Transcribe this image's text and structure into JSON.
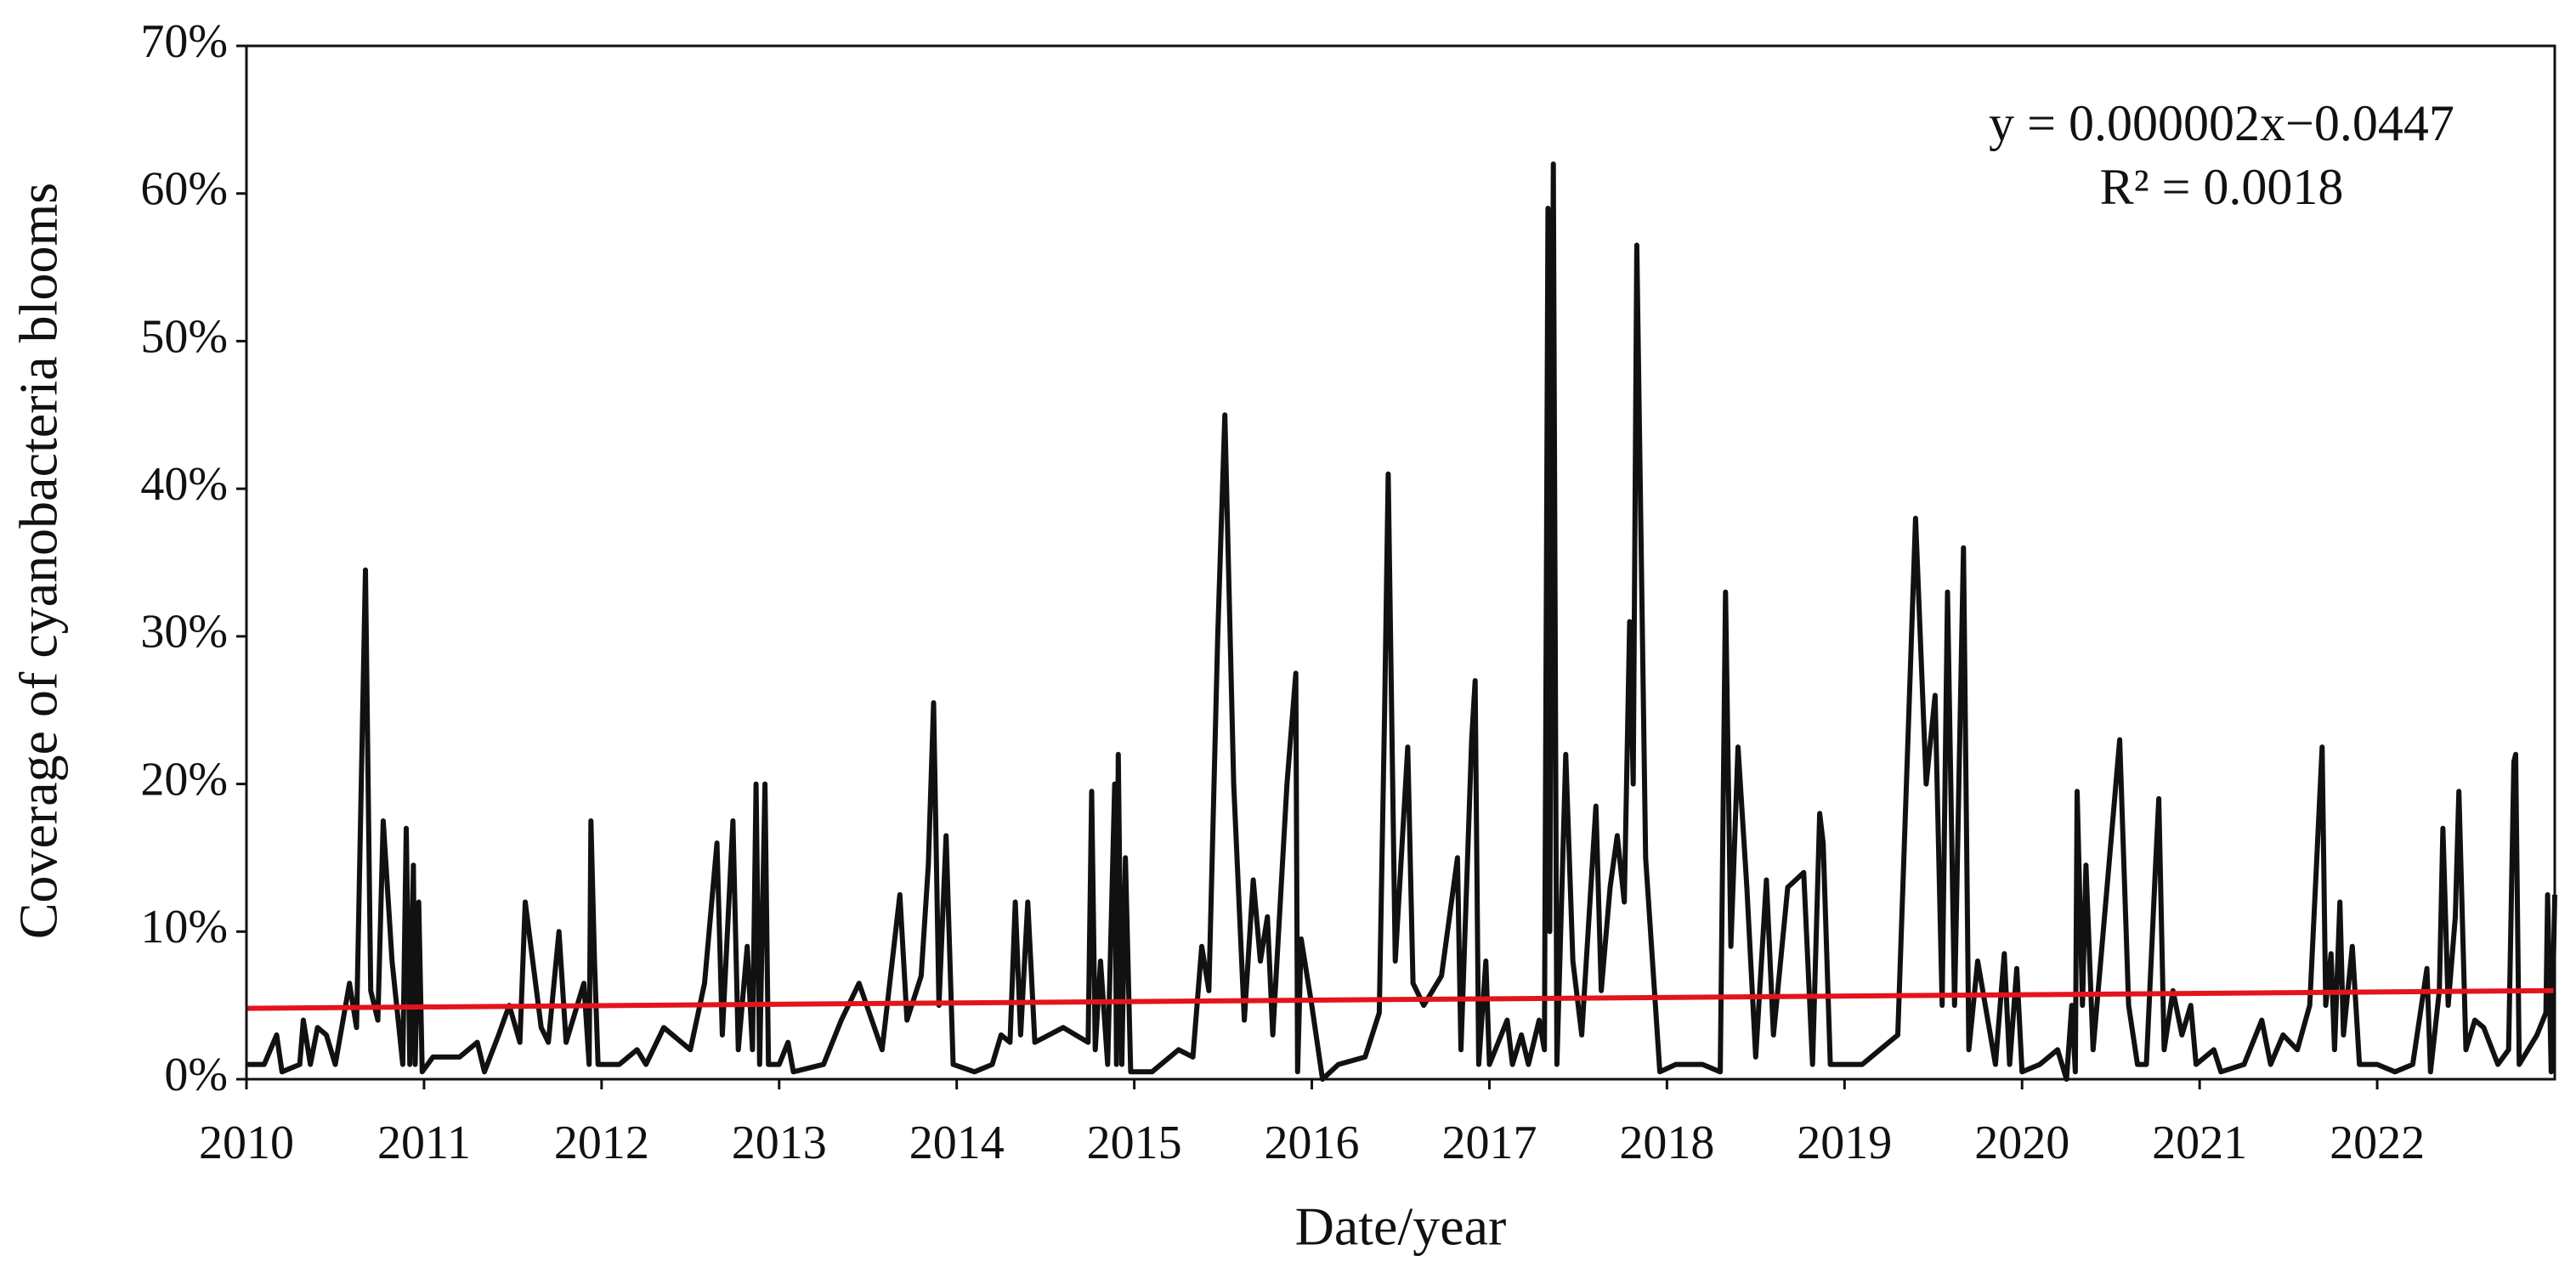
{
  "chart_data": {
    "type": "line",
    "xlabel": "Date/year",
    "ylabel": "Coverage of cyanobacteria blooms",
    "annotations": [
      "y = 0.000002x−0.0447",
      "R² = 0.0018"
    ],
    "xlim": [
      2010,
      2023
    ],
    "xticks": [
      2010,
      2011,
      2012,
      2013,
      2014,
      2015,
      2016,
      2017,
      2018,
      2019,
      2020,
      2021,
      2022
    ],
    "ylim": [
      0,
      70
    ],
    "yticks": [
      {
        "value": 0,
        "label": "0%"
      },
      {
        "value": 10,
        "label": "10%"
      },
      {
        "value": 20,
        "label": "20%"
      },
      {
        "value": 30,
        "label": "30%"
      },
      {
        "value": 40,
        "label": "40%"
      },
      {
        "value": 50,
        "label": "50%"
      },
      {
        "value": 60,
        "label": "60%"
      },
      {
        "value": 70,
        "label": "70%"
      }
    ],
    "trendline": {
      "color": "#e3141c",
      "x": [
        2010,
        2023
      ],
      "values": [
        4.8,
        6.0
      ]
    },
    "series": [
      {
        "color": "#111111",
        "x": [
          2010.0,
          2010.1,
          2010.17,
          2010.2,
          2010.3,
          2010.32,
          2010.36,
          2010.4,
          2010.45,
          2010.5,
          2010.58,
          2010.62,
          2010.67,
          2010.7,
          2010.74,
          2010.77,
          2010.82,
          2010.88,
          2010.9,
          2010.92,
          2010.94,
          2010.95,
          2010.97,
          2010.99,
          2011.05,
          2011.2,
          2011.3,
          2011.34,
          2011.42,
          2011.48,
          2011.54,
          2011.57,
          2011.66,
          2011.7,
          2011.76,
          2011.8,
          2011.9,
          2011.93,
          2011.94,
          2011.96,
          2011.98,
          2012.1,
          2012.2,
          2012.25,
          2012.35,
          2012.5,
          2012.58,
          2012.65,
          2012.68,
          2012.74,
          2012.77,
          2012.82,
          2012.85,
          2012.87,
          2012.89,
          2012.92,
          2012.94,
          2013.0,
          2013.05,
          2013.08,
          2013.25,
          2013.35,
          2013.45,
          2013.58,
          2013.68,
          2013.72,
          2013.8,
          2013.84,
          2013.87,
          2013.9,
          2013.94,
          2013.98,
          2014.1,
          2014.2,
          2014.25,
          2014.3,
          2014.33,
          2014.36,
          2014.4,
          2014.44,
          2014.6,
          2014.74,
          2014.76,
          2014.78,
          2014.81,
          2014.85,
          2014.89,
          2014.9,
          2014.91,
          2014.93,
          2014.95,
          2014.98,
          2015.1,
          2015.25,
          2015.33,
          2015.38,
          2015.42,
          2015.47,
          2015.51,
          2015.56,
          2015.62,
          2015.67,
          2015.71,
          2015.75,
          2015.78,
          2015.86,
          2015.91,
          2015.92,
          2015.94,
          2016.0,
          2016.06,
          2016.15,
          2016.3,
          2016.38,
          2016.41,
          2016.43,
          2016.47,
          2016.54,
          2016.57,
          2016.63,
          2016.73,
          2016.82,
          2016.84,
          2016.9,
          2016.92,
          2016.94,
          2016.98,
          2017.0,
          2017.1,
          2017.13,
          2017.18,
          2017.22,
          2017.28,
          2017.31,
          2017.33,
          2017.34,
          2017.36,
          2017.38,
          2017.43,
          2017.47,
          2017.52,
          2017.6,
          2017.63,
          2017.68,
          2017.72,
          2017.76,
          2017.79,
          2017.81,
          2017.83,
          2017.88,
          2017.96,
          2018.05,
          2018.2,
          2018.3,
          2018.33,
          2018.36,
          2018.4,
          2018.45,
          2018.5,
          2018.56,
          2018.6,
          2018.68,
          2018.77,
          2018.82,
          2018.86,
          2018.88,
          2018.92,
          2019.1,
          2019.25,
          2019.3,
          2019.4,
          2019.46,
          2019.51,
          2019.55,
          2019.58,
          2019.62,
          2019.67,
          2019.7,
          2019.75,
          2019.85,
          2019.9,
          2019.93,
          2019.97,
          2020.0,
          2020.1,
          2020.2,
          2020.25,
          2020.28,
          2020.3,
          2020.31,
          2020.34,
          2020.36,
          2020.4,
          2020.55,
          2020.6,
          2020.65,
          2020.7,
          2020.75,
          2020.77,
          2020.8,
          2020.85,
          2020.9,
          2020.95,
          2020.98,
          2021.08,
          2021.12,
          2021.25,
          2021.35,
          2021.4,
          2021.47,
          2021.55,
          2021.62,
          2021.69,
          2021.71,
          2021.74,
          2021.76,
          2021.79,
          2021.81,
          2021.86,
          2021.9,
          2022.0,
          2022.1,
          2022.2,
          2022.28,
          2022.3,
          2022.35,
          2022.37,
          2022.4,
          2022.44,
          2022.46,
          2022.5,
          2022.55,
          2022.6,
          2022.68,
          2022.74,
          2022.77,
          2022.78,
          2022.8,
          2022.9,
          2022.95,
          2022.96,
          2022.98,
          2023.0
        ],
        "values": [
          1,
          1,
          3,
          0.5,
          1,
          4,
          1,
          3.5,
          3,
          1,
          6.5,
          3.5,
          34.5,
          6,
          4,
          17.5,
          8,
          1,
          17,
          1,
          14.5,
          1,
          12,
          0.5,
          1.5,
          1.5,
          2.5,
          0.5,
          3,
          5,
          2.5,
          12,
          3.5,
          2.5,
          10,
          2.5,
          6.5,
          1,
          17.5,
          8,
          1,
          1,
          2,
          1,
          3.5,
          2,
          6.5,
          16,
          3,
          17.5,
          2,
          9,
          2,
          20,
          1,
          20,
          1,
          1,
          2.5,
          0.5,
          1,
          4,
          6.5,
          2,
          12.5,
          4,
          7,
          14.5,
          25.5,
          5,
          16.5,
          1,
          0.5,
          1,
          3,
          2.5,
          12,
          3,
          12,
          2.5,
          3.5,
          2.5,
          19.5,
          2,
          8,
          1,
          20,
          1,
          22,
          1,
          15,
          0.5,
          0.5,
          2,
          1.5,
          9,
          6,
          30,
          45,
          20,
          4,
          13.5,
          8,
          11,
          3,
          20,
          27.5,
          0.5,
          9.5,
          5,
          0,
          1,
          1.5,
          4.5,
          25,
          41,
          8,
          22.5,
          6.5,
          5,
          7,
          15,
          2,
          23,
          27,
          1,
          8,
          1,
          4,
          1,
          3,
          1,
          4,
          2,
          59,
          10,
          62,
          1,
          22,
          8,
          3,
          18.5,
          6,
          13,
          16.5,
          12,
          31,
          20,
          56.5,
          15,
          0.5,
          1,
          1,
          0.5,
          33,
          9,
          22.5,
          13,
          1.5,
          13.5,
          3,
          13,
          14,
          1,
          18,
          16,
          1,
          1,
          2.5,
          3,
          38,
          20,
          26,
          5,
          33,
          5,
          36,
          2,
          8,
          1,
          8.5,
          1,
          7.5,
          0.5,
          1,
          2,
          0,
          5,
          0.5,
          19.5,
          5,
          14.5,
          2,
          23,
          5,
          1,
          1,
          14,
          19,
          2,
          6,
          3,
          5,
          1,
          2,
          0.5,
          1,
          4,
          1,
          3,
          2,
          5,
          22.5,
          5,
          8.5,
          2,
          12,
          3,
          9,
          1,
          1,
          0.5,
          1,
          7.5,
          0.5,
          6,
          17,
          5,
          11,
          19.5,
          2,
          4,
          3.5,
          1,
          2,
          21.5,
          22,
          1,
          3,
          4.5,
          12.5,
          0.5,
          12.5
        ]
      }
    ]
  }
}
